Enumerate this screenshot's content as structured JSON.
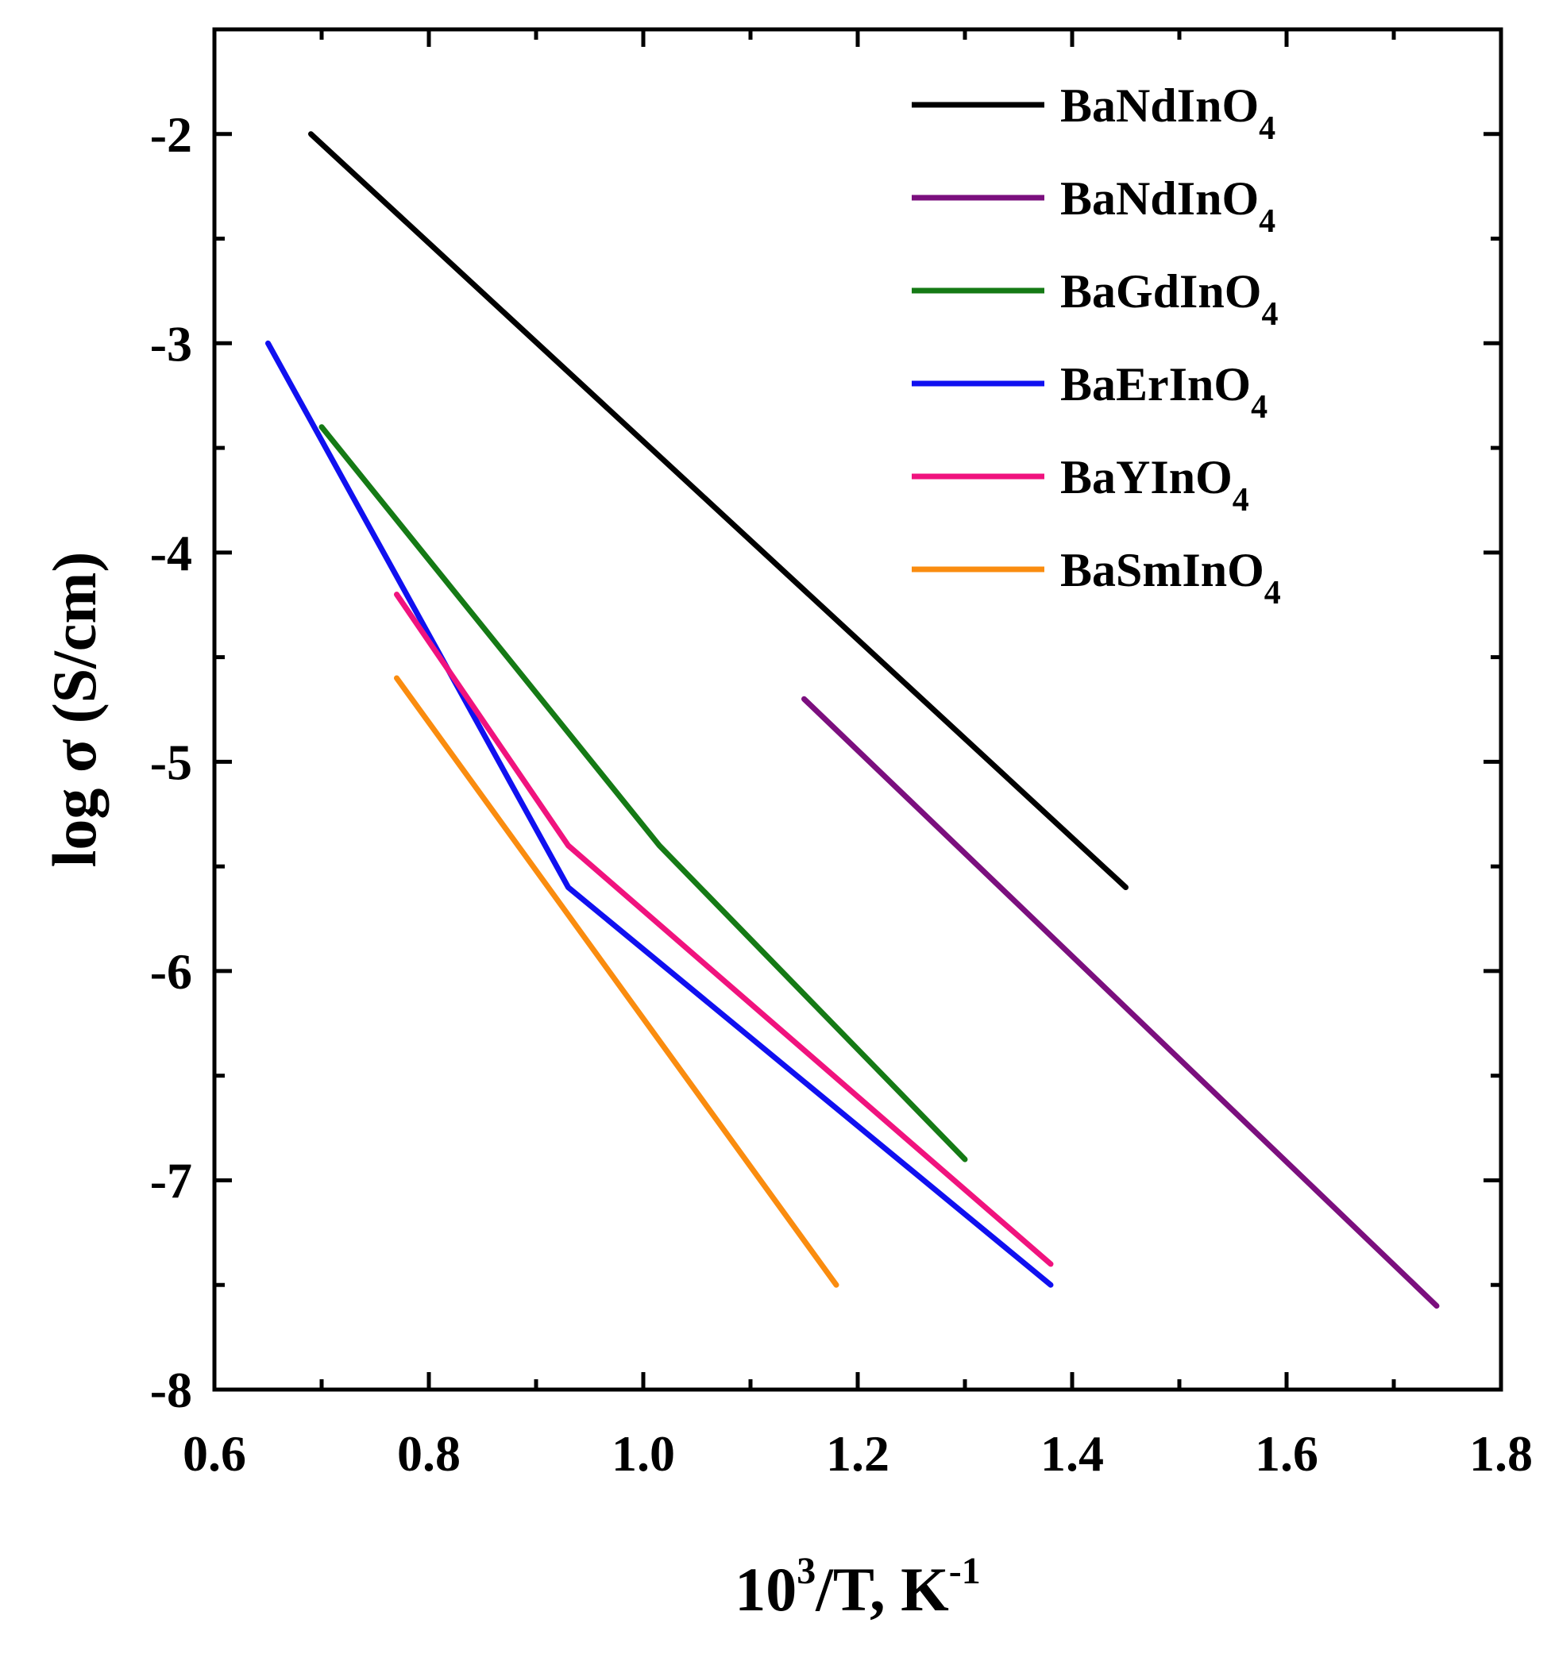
{
  "chart_data": {
    "type": "line",
    "title": "",
    "xlabel": {
      "base": "10",
      "sup": "3",
      "rest": "/T, K",
      "sup2": "-1"
    },
    "ylabel": "log σ (S/cm)",
    "xlim": [
      0.6,
      1.8
    ],
    "ylim": [
      -8,
      -1.5
    ],
    "xticks": [
      0.6,
      0.8,
      1.0,
      1.2,
      1.4,
      1.6,
      1.8
    ],
    "xtick_labels": [
      "0.6",
      "0.8",
      "1.0",
      "1.2",
      "1.4",
      "1.6",
      "1.8"
    ],
    "yticks": [
      -8,
      -7,
      -6,
      -5,
      -4,
      -3,
      -2
    ],
    "ytick_labels": [
      "-8",
      "-7",
      "-6",
      "-5",
      "-4",
      "-3",
      "-2"
    ],
    "legend_position": "top-right",
    "series": [
      {
        "name": "BaNdInO",
        "sub": "4",
        "color": "#000000",
        "x": [
          0.69,
          1.45
        ],
        "y": [
          -2.0,
          -5.6
        ]
      },
      {
        "name": "BaNdInO",
        "sub": "4",
        "color": "#7b0f7e",
        "x": [
          1.15,
          1.74
        ],
        "y": [
          -4.7,
          -7.6
        ]
      },
      {
        "name": "BaGdInO",
        "sub": "4",
        "color": "#157a15",
        "x": [
          0.7,
          1.015,
          1.3
        ],
        "y": [
          -3.4,
          -5.4,
          -6.9
        ]
      },
      {
        "name": "BaErInO",
        "sub": "4",
        "color": "#1010f0",
        "x": [
          0.65,
          0.93,
          1.38
        ],
        "y": [
          -3.0,
          -5.6,
          -7.5
        ]
      },
      {
        "name": "BaYInO",
        "sub": "4",
        "color": "#f0137e",
        "x": [
          0.77,
          0.93,
          1.38
        ],
        "y": [
          -4.2,
          -5.4,
          -7.4
        ]
      },
      {
        "name": "BaSmInO",
        "sub": "4",
        "color": "#fa8c0f",
        "x": [
          0.77,
          1.18
        ],
        "y": [
          -4.6,
          -7.5
        ]
      }
    ]
  }
}
